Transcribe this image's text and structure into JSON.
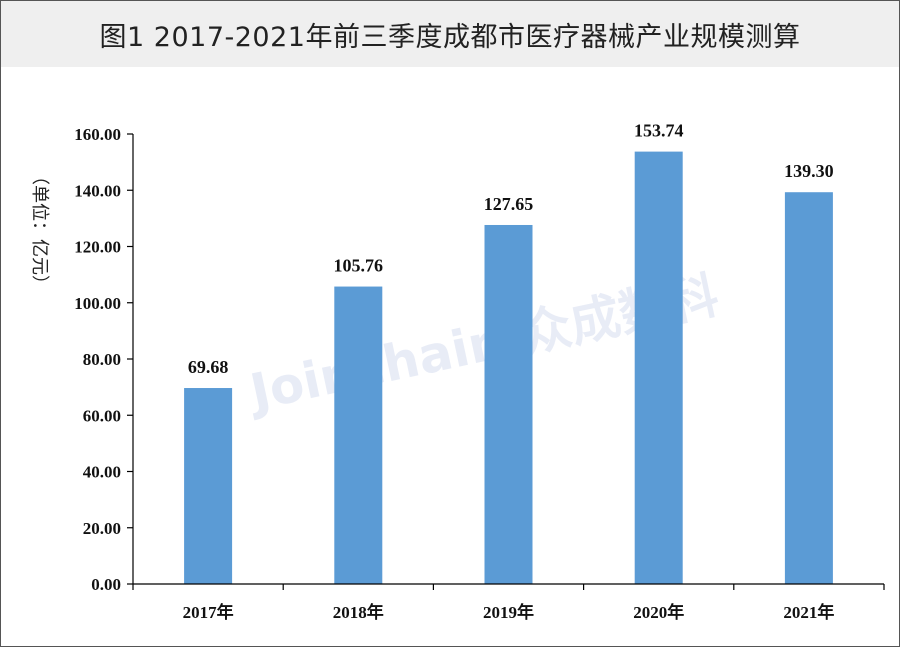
{
  "header": {
    "title": "图1  2017-2021年前三季度成都市医疗器械产业规模测算"
  },
  "watermark": {
    "text": "Joinchain.众成数科"
  },
  "colors": {
    "bar": "#5b9bd5",
    "axis": "#000000"
  },
  "chart_data": {
    "type": "bar",
    "title": "图1  2017-2021年前三季度成都市医疗器械产业规模测算",
    "categories": [
      "2017年",
      "2018年",
      "2019年",
      "2020年",
      "2021年"
    ],
    "values": [
      69.68,
      105.76,
      127.65,
      153.74,
      139.3
    ],
    "data_labels": [
      "69.68",
      "105.76",
      "127.65",
      "153.74",
      "139.30"
    ],
    "ylabel": "（单位：亿元）",
    "ylim": [
      0,
      160
    ],
    "yticks": [
      "0.00",
      "20.00",
      "40.00",
      "60.00",
      "80.00",
      "100.00",
      "120.00",
      "140.00",
      "160.00"
    ],
    "grid": false,
    "legend": "none"
  }
}
